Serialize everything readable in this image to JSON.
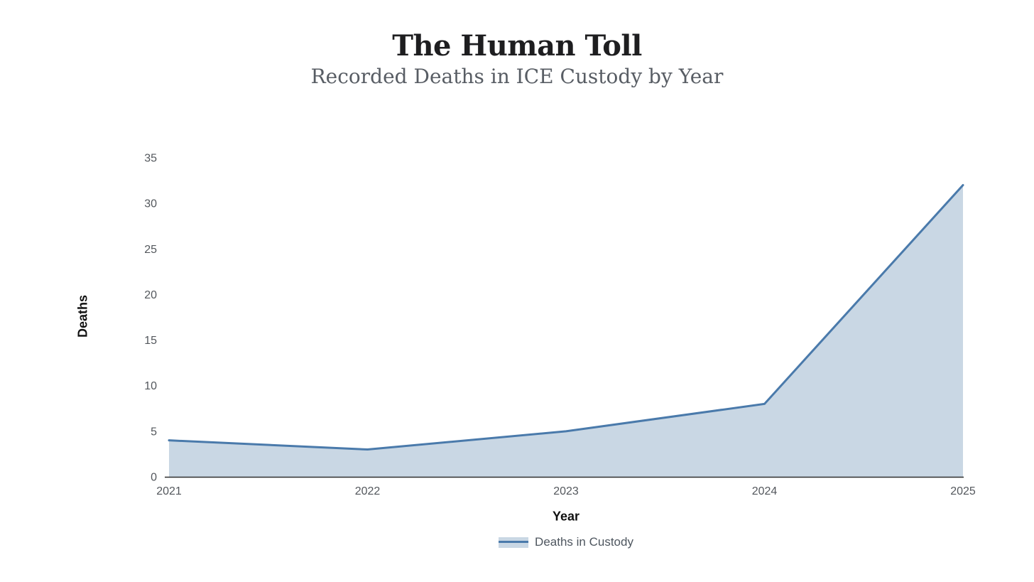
{
  "page": {
    "background": "#ffffff"
  },
  "chart_data": {
    "type": "area",
    "title": "The Human Toll",
    "subtitle": "Recorded Deaths in ICE Custody by Year",
    "xlabel": "Year",
    "ylabel": "Deaths",
    "categories": [
      "2021",
      "2022",
      "2023",
      "2024",
      "2025"
    ],
    "series": [
      {
        "name": "Deaths in Custody",
        "values": [
          4,
          3,
          5,
          8,
          32
        ]
      }
    ],
    "ylim": [
      0,
      35
    ],
    "y_ticks": [
      0,
      5,
      10,
      15,
      20,
      25,
      30,
      35
    ],
    "grid": false,
    "legend_position": "bottom",
    "colors": {
      "line": "#4a7aab",
      "fill": "#c9d7e4",
      "axis": "#2e2e2e",
      "tick_text": "#53575c",
      "title_text": "#1e1e20",
      "subtitle_text": "#585d64",
      "axis_label_text": "#111111",
      "legend_text": "#4e565f"
    }
  }
}
